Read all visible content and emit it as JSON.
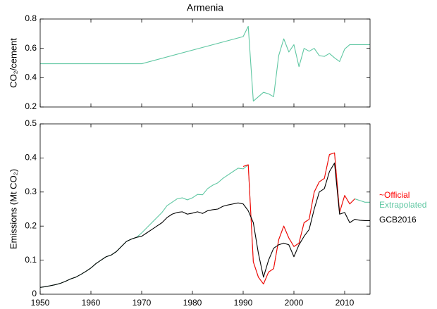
{
  "chart_data": [
    {
      "type": "line",
      "title": "Armenia",
      "ylabel": "CO₂/cement",
      "x": [
        1950,
        1970,
        1990,
        1991,
        1992,
        1993,
        1994,
        1995,
        1996,
        1997,
        1998,
        1999,
        2000,
        2001,
        2002,
        2003,
        2004,
        2005,
        2006,
        2007,
        2008,
        2009,
        2010,
        2011,
        2012,
        2013,
        2014,
        2015
      ],
      "values": [
        0.495,
        0.495,
        0.68,
        0.75,
        0.24,
        0.27,
        0.3,
        0.29,
        0.27,
        0.55,
        0.665,
        0.575,
        0.625,
        0.475,
        0.6,
        0.58,
        0.6,
        0.55,
        0.545,
        0.565,
        0.535,
        0.51,
        0.595,
        0.625,
        0.625,
        0.625,
        0.625,
        0.625
      ],
      "color": "#5fc7a2",
      "xlim": [
        1950,
        2015
      ],
      "xticks": [
        1950,
        1960,
        1970,
        1980,
        1990,
        2000,
        2010
      ],
      "xtick_labels": false,
      "ylim": [
        0.2,
        0.8
      ],
      "yticks": [
        0.2,
        0.4,
        0.6,
        0.8
      ],
      "grid": false
    },
    {
      "type": "line",
      "ylabel": "Emissions (Mt CO₂)",
      "x": [
        1950,
        1951,
        1952,
        1953,
        1954,
        1955,
        1956,
        1957,
        1958,
        1959,
        1960,
        1961,
        1962,
        1963,
        1964,
        1965,
        1966,
        1967,
        1968,
        1969,
        1970,
        1971,
        1972,
        1973,
        1974,
        1975,
        1976,
        1977,
        1978,
        1979,
        1980,
        1981,
        1982,
        1983,
        1984,
        1985,
        1986,
        1987,
        1988,
        1989,
        1990,
        1991,
        1992,
        1993,
        1994,
        1995,
        1996,
        1997,
        1998,
        1999,
        2000,
        2001,
        2002,
        2003,
        2004,
        2005,
        2006,
        2007,
        2008,
        2009,
        2010,
        2011,
        2012,
        2013,
        2014,
        2015
      ],
      "series": [
        {
          "name": "~Official",
          "color": "#ff0000",
          "values": [
            null,
            null,
            null,
            null,
            null,
            null,
            null,
            null,
            null,
            null,
            null,
            null,
            null,
            null,
            null,
            null,
            null,
            null,
            null,
            null,
            null,
            null,
            null,
            null,
            null,
            null,
            null,
            null,
            null,
            null,
            null,
            null,
            null,
            null,
            null,
            null,
            null,
            null,
            null,
            null,
            0.375,
            0.38,
            0.095,
            0.05,
            0.03,
            0.065,
            0.075,
            0.16,
            0.2,
            0.165,
            0.14,
            0.15,
            0.21,
            0.22,
            0.3,
            0.33,
            0.34,
            0.41,
            0.415,
            0.24,
            0.29,
            0.265,
            0.28,
            null,
            null,
            null
          ]
        },
        {
          "name": "Extrapolated",
          "color": "#5fc7a2",
          "values": [
            0.02,
            0.022,
            0.025,
            0.028,
            0.032,
            0.038,
            0.045,
            0.05,
            0.058,
            0.067,
            0.077,
            0.09,
            0.1,
            0.11,
            0.115,
            0.125,
            0.14,
            0.155,
            0.162,
            0.167,
            0.18,
            0.195,
            0.21,
            0.225,
            0.24,
            0.26,
            0.27,
            0.28,
            0.283,
            0.277,
            0.283,
            0.293,
            0.292,
            0.31,
            0.32,
            0.327,
            0.34,
            0.35,
            0.36,
            0.37,
            0.368,
            0.38,
            0.095,
            0.05,
            0.03,
            0.065,
            0.075,
            0.16,
            0.2,
            0.165,
            0.14,
            0.15,
            0.21,
            0.22,
            0.3,
            0.33,
            0.34,
            0.41,
            0.415,
            0.24,
            0.29,
            0.265,
            0.28,
            0.275,
            0.27,
            0.27
          ]
        },
        {
          "name": "GCB2016",
          "color": "#000000",
          "values": [
            0.02,
            0.022,
            0.025,
            0.028,
            0.032,
            0.038,
            0.045,
            0.05,
            0.058,
            0.067,
            0.077,
            0.09,
            0.1,
            0.11,
            0.115,
            0.125,
            0.14,
            0.155,
            0.162,
            0.167,
            0.17,
            0.18,
            0.19,
            0.2,
            0.21,
            0.225,
            0.235,
            0.24,
            0.242,
            0.235,
            0.238,
            0.242,
            0.237,
            0.245,
            0.248,
            0.25,
            0.258,
            0.262,
            0.265,
            0.268,
            0.265,
            0.245,
            0.21,
            0.12,
            0.05,
            0.1,
            0.135,
            0.145,
            0.15,
            0.145,
            0.11,
            0.145,
            0.17,
            0.19,
            0.25,
            0.3,
            0.31,
            0.36,
            0.385,
            0.235,
            0.24,
            0.21,
            0.22,
            0.217,
            0.216,
            0.216
          ]
        }
      ],
      "xlim": [
        1950,
        2015
      ],
      "xticks": [
        1950,
        1960,
        1970,
        1980,
        1990,
        2000,
        2010
      ],
      "xtick_labels": true,
      "ylim": [
        0,
        0.5
      ],
      "yticks": [
        0,
        0.1,
        0.2,
        0.3,
        0.4,
        0.5
      ],
      "grid": false,
      "legend": "right"
    }
  ]
}
